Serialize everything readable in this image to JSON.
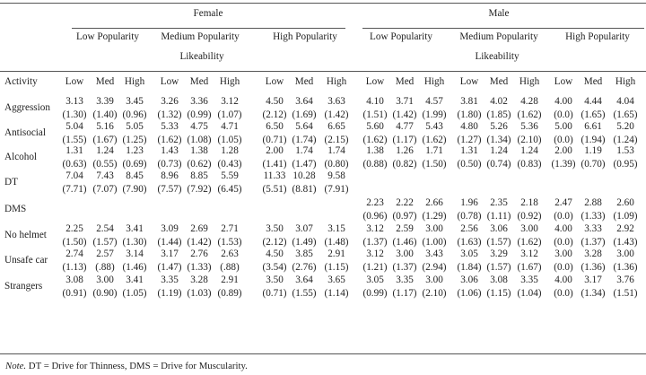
{
  "header": {
    "gender": [
      "Female",
      "Male"
    ],
    "popularity": [
      "Low Popularity",
      "Medium Popularity",
      "High Popularity"
    ],
    "likeability": "Likeability",
    "activity_label": "Activity",
    "levels": [
      "Low",
      "Med",
      "High"
    ]
  },
  "rows": [
    {
      "label": "Aggression",
      "means": [
        "3.13",
        "3.39",
        "3.45",
        "3.26",
        "3.36",
        "3.12",
        "4.50",
        "3.64",
        "3.63",
        "4.10",
        "3.71",
        "4.57",
        "3.81",
        "4.02",
        "4.28",
        "4.00",
        "4.44",
        "4.04"
      ],
      "sds": [
        "(1.30)",
        "(1.40)",
        "(0.96)",
        "(1.32)",
        "(0.99)",
        "(1.07)",
        "(2.12)",
        "(1.69)",
        "(1.42)",
        "(1.51)",
        "(1.42)",
        "(1.99)",
        "(1.80)",
        "(1.85)",
        "(1.62)",
        "(0.0)",
        "(1.65)",
        "(1.65)"
      ]
    },
    {
      "label": "Antisocial",
      "means": [
        "5.04",
        "5.16",
        "5.05",
        "5.33",
        "4.75",
        "4.71",
        "6.50",
        "5.64",
        "6.65",
        "5.60",
        "4.77",
        "5.43",
        "4.80",
        "5.26",
        "5.36",
        "5.00",
        "6.61",
        "5.20"
      ],
      "sds": [
        "(1.55)",
        "(1.67)",
        "(1.25)",
        "(1.62)",
        "(1.08)",
        "(1.05)",
        "(0.71)",
        "(1.74)",
        "(2.15)",
        "(1.62)",
        "(1.17)",
        "(1.62)",
        "(1.27)",
        "(1.34)",
        "(2.10)",
        "(0.0)",
        "(1.94)",
        "(1.24)"
      ]
    },
    {
      "label": "Alcohol",
      "means": [
        "1.31",
        "1.24",
        "1.23",
        "1.43",
        "1.38",
        "1.28",
        "2.00",
        "1.74",
        "1.74",
        "1.38",
        "1.26",
        "1.71",
        "1.31",
        "1.24",
        "1.24",
        "2.00",
        "1.19",
        "1.53"
      ],
      "sds": [
        "(0.63)",
        "(0.55)",
        "(0.69)",
        "(0.73)",
        "(0.62)",
        "(0.43)",
        "(1.41)",
        "(1.47)",
        "(0.80)",
        "(0.88)",
        "(0.82)",
        "(1.50)",
        "(0.50)",
        "(0.74)",
        "(0.83)",
        "(1.39)",
        "(0.70)",
        "(0.95)"
      ]
    },
    {
      "label": "DT",
      "means": [
        "7.04",
        "7.43",
        "8.45",
        "8.96",
        "8.85",
        "5.59",
        "11.33",
        "10.28",
        "9.58",
        "",
        "",
        "",
        "",
        "",
        "",
        "",
        "",
        ""
      ],
      "sds": [
        "(7.71)",
        "(7.07)",
        "(7.90)",
        "(7.57)",
        "(7.92)",
        "(6.45)",
        "(5.51)",
        "(8.81)",
        "(7.91)",
        "",
        "",
        "",
        "",
        "",
        "",
        "",
        "",
        ""
      ]
    },
    {
      "label": "DMS",
      "means": [
        "",
        "",
        "",
        "",
        "",
        "",
        "",
        "",
        "",
        "2.23",
        "2.22",
        "2.66",
        "1.96",
        "2.35",
        "2.18",
        "2.47",
        "2.88",
        "2.60"
      ],
      "sds": [
        "",
        "",
        "",
        "",
        "",
        "",
        "",
        "",
        "",
        "(0.96)",
        "(0.97)",
        "(1.29)",
        "(0.78)",
        "(1.11)",
        "(0.92)",
        "(0.0)",
        "(1.33)",
        "(1.09)"
      ]
    },
    {
      "label": "No helmet",
      "means": [
        "2.25",
        "2.54",
        "3.41",
        "3.09",
        "2.69",
        "2.71",
        "3.50",
        "3.07",
        "3.15",
        "3.12",
        "2.59",
        "3.00",
        "2.56",
        "3.06",
        "3.00",
        "4.00",
        "3.33",
        "2.92"
      ],
      "sds": [
        "(1.50)",
        "(1.57)",
        "(1.30)",
        "(1.44)",
        "(1.42)",
        "(1.53)",
        "(2.12)",
        "(1.49)",
        "(1.48)",
        "(1.37)",
        "(1.46)",
        "(1.00)",
        "(1.63)",
        "(1.57)",
        "(1.62)",
        "(0.0)",
        "(1.37)",
        "(1.43)"
      ]
    },
    {
      "label": "Unsafe car",
      "means": [
        "2.74",
        "2.57",
        "3.14",
        "3.17",
        "2.76",
        "2.63",
        "4.50",
        "3.85",
        "2.91",
        "3.12",
        "3.00",
        "3.43",
        "3.05",
        "3.29",
        "3.12",
        "3.00",
        "3.28",
        "3.00"
      ],
      "sds": [
        "(1.13)",
        "(.88)",
        "(1.46)",
        "(1.47)",
        "(1.33)",
        "(.88)",
        "(3.54)",
        "(2.76)",
        "(1.15)",
        "(1.21)",
        "(1.37)",
        "(2.94)",
        "(1.84)",
        "(1.57)",
        "(1.67)",
        "(0.0)",
        "(1.36)",
        "(1.36)"
      ]
    },
    {
      "label": "Strangers",
      "means": [
        "3.08",
        "3.00",
        "3.41",
        "3.35",
        "3.28",
        "2.91",
        "3.50",
        "3.64",
        "3.65",
        "3.05",
        "3.35",
        "3.00",
        "3.06",
        "3.08",
        "3.35",
        "4.00",
        "3.17",
        "3.76"
      ],
      "sds": [
        "(0.91)",
        "(0.90)",
        "(1.05)",
        "(1.19)",
        "(1.03)",
        "(0.89)",
        "(0.71)",
        "(1.55)",
        "(1.14)",
        "(0.99)",
        "(1.17)",
        "(2.10)",
        "(1.06)",
        "(1.15)",
        "(1.04)",
        "(0.0)",
        "(1.34)",
        "(1.51)"
      ]
    }
  ],
  "note_label": "Note.",
  "note_text": " DT = Drive for Thinness, DMS = Drive for Muscularity."
}
